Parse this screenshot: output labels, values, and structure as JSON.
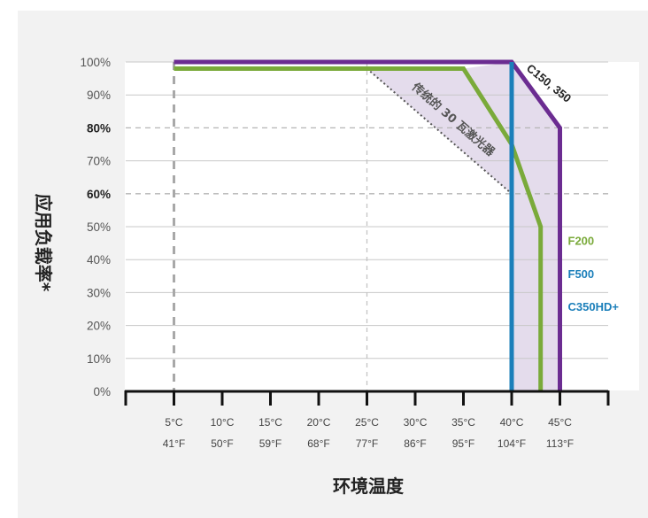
{
  "chart_data": {
    "type": "line",
    "xlabel": "环境温度",
    "ylabel": "应用负载率*",
    "xlim": [
      0,
      50
    ],
    "ylim": [
      0,
      100
    ],
    "yticks": [
      "0%",
      "10%",
      "20%",
      "30%",
      "40%",
      "50%",
      "60%",
      "70%",
      "80%",
      "90%",
      "100%"
    ],
    "ytick_values": [
      0,
      10,
      20,
      30,
      40,
      50,
      60,
      70,
      80,
      90,
      100
    ],
    "ytick_bold": [
      60,
      80
    ],
    "xticks": [
      {
        "c": "5°C",
        "f": "41°F",
        "value": 5
      },
      {
        "c": "10°C",
        "f": "50°F",
        "value": 10
      },
      {
        "c": "15°C",
        "f": "59°F",
        "value": 15
      },
      {
        "c": "20°C",
        "f": "68°F",
        "value": 20
      },
      {
        "c": "25°C",
        "f": "77°F",
        "value": 25
      },
      {
        "c": "30°C",
        "f": "86°F",
        "value": 30
      },
      {
        "c": "35°C",
        "f": "95°F",
        "value": 35
      },
      {
        "c": "40°C",
        "f": "104°F",
        "value": 40
      },
      {
        "c": "45°C",
        "f": "113°F",
        "value": 45
      }
    ],
    "reference_lines": {
      "y": [
        60,
        80
      ],
      "x": [
        5,
        25
      ]
    },
    "series": [
      {
        "name": "C150, 350",
        "color": "#6b2c91",
        "points": [
          [
            5,
            100
          ],
          [
            40,
            100
          ],
          [
            45,
            80
          ],
          [
            45,
            0
          ]
        ]
      },
      {
        "name": "F200",
        "color": "#7aaa3a",
        "points": [
          [
            5,
            98
          ],
          [
            35,
            98
          ],
          [
            40,
            75
          ],
          [
            43,
            50
          ],
          [
            43,
            0
          ]
        ]
      },
      {
        "name": "F500",
        "color": "#1b7fba",
        "points": [
          [
            40,
            100
          ],
          [
            40,
            0
          ]
        ]
      }
    ],
    "extra_label": {
      "text": "C350HD+",
      "color": "#1b7fba"
    },
    "annotation": {
      "text": "传统的 30 瓦激光器",
      "points": [
        [
          25,
          98
        ],
        [
          40,
          60
        ]
      ],
      "color": "#555555"
    },
    "shaded_region": {
      "color": "#e4dcec",
      "points": [
        [
          25,
          98
        ],
        [
          35,
          98
        ],
        [
          40,
          100
        ],
        [
          45,
          80
        ],
        [
          45,
          0
        ],
        [
          40,
          0
        ],
        [
          40,
          60
        ]
      ]
    }
  }
}
